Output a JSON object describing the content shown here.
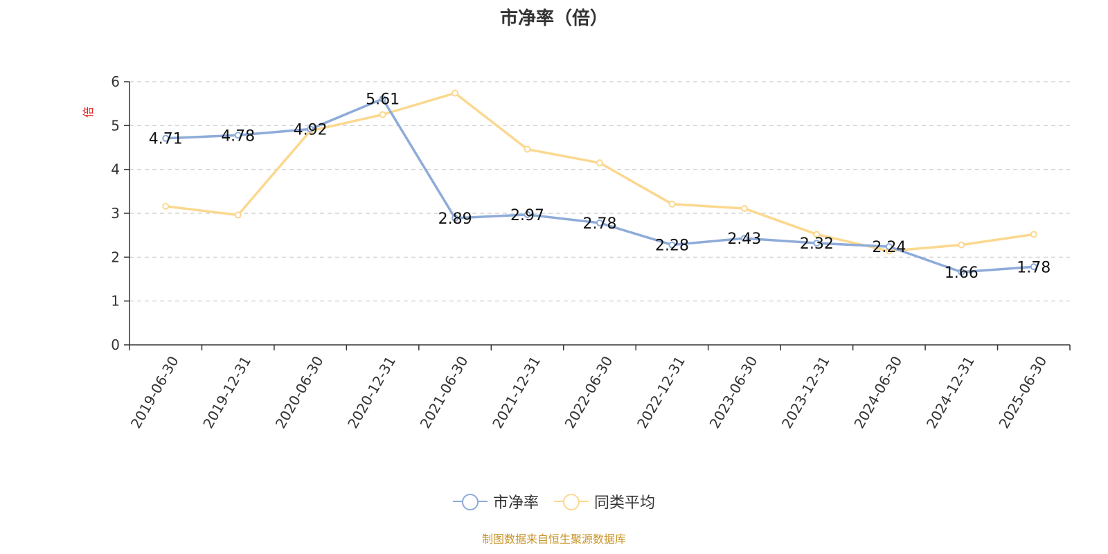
{
  "title": "市净率（倍）",
  "y_unit": "倍",
  "source": "制图数据来自恒生聚源数据库",
  "colors": {
    "series1": "#8eabd9",
    "series2": "#fbd88f",
    "unit": "#e02020",
    "source": "#c8952a",
    "axis": "#333333",
    "grid": "#cccccc"
  },
  "chart_data": {
    "type": "line",
    "title": "市净率（倍）",
    "ylabel": "倍",
    "ylim": [
      0,
      6
    ],
    "yticks": [
      0,
      1,
      2,
      3,
      4,
      5,
      6
    ],
    "grid": "horizontal dashed",
    "legend_position": "bottom",
    "categories": [
      "2019-06-30",
      "2019-12-31",
      "2020-06-30",
      "2020-12-31",
      "2021-06-30",
      "2021-12-31",
      "2022-06-30",
      "2022-12-31",
      "2023-06-30",
      "2023-12-31",
      "2024-06-30",
      "2024-12-31",
      "2025-06-30"
    ],
    "series": [
      {
        "name": "市净率",
        "color": "#8eabd9",
        "values": [
          4.71,
          4.78,
          4.92,
          5.61,
          2.89,
          2.97,
          2.78,
          2.28,
          2.43,
          2.32,
          2.24,
          1.66,
          1.78
        ],
        "data_labels": [
          "4.71",
          "4.78",
          "4.92",
          "5.61",
          "2.89",
          "2.97",
          "2.78",
          "2.28",
          "2.43",
          "2.32",
          "2.24",
          "1.66",
          "1.78"
        ]
      },
      {
        "name": "同类平均",
        "color": "#fbd88f",
        "values": [
          3.16,
          2.96,
          4.88,
          5.25,
          5.74,
          4.46,
          4.15,
          3.21,
          3.11,
          2.52,
          2.14,
          2.28,
          2.52
        ]
      }
    ]
  },
  "legend": [
    {
      "label": "市净率"
    },
    {
      "label": "同类平均"
    }
  ]
}
